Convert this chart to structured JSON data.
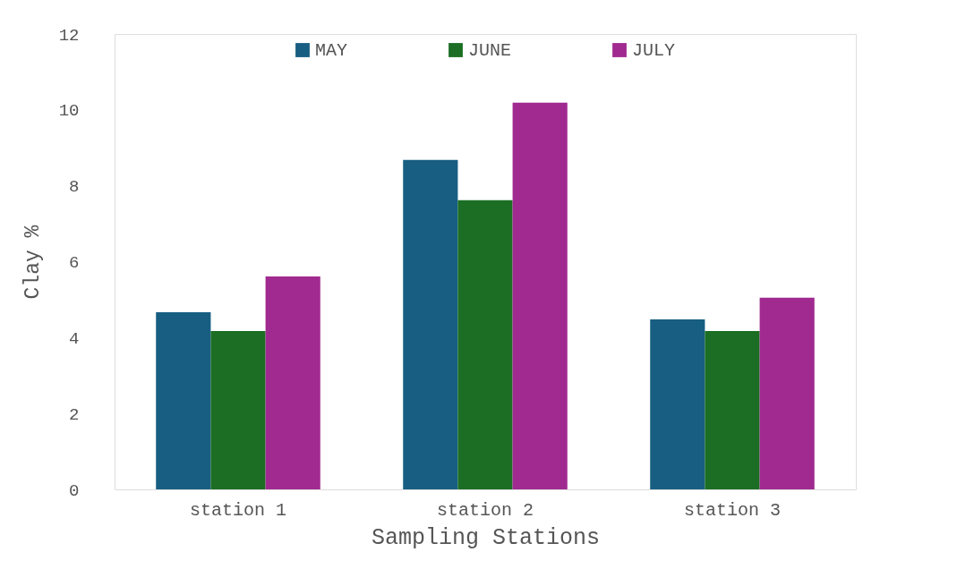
{
  "chart_data": {
    "type": "bar",
    "xlabel": "Sampling Stations",
    "ylabel": "Clay %",
    "categories": [
      "station 1",
      "station 2",
      "station 3"
    ],
    "series": [
      {
        "name": "MAY",
        "color": "#175e82",
        "values": [
          4.67,
          8.68,
          4.48
        ]
      },
      {
        "name": "JUNE",
        "color": "#1b6e23",
        "values": [
          4.17,
          7.62,
          4.17
        ]
      },
      {
        "name": "JULY",
        "color": "#a02a90",
        "values": [
          5.61,
          10.19,
          5.05
        ]
      }
    ],
    "ylim": [
      0,
      12
    ],
    "yticks": [
      0,
      2,
      4,
      6,
      8,
      10,
      12
    ],
    "grid": false,
    "legend": "top"
  }
}
